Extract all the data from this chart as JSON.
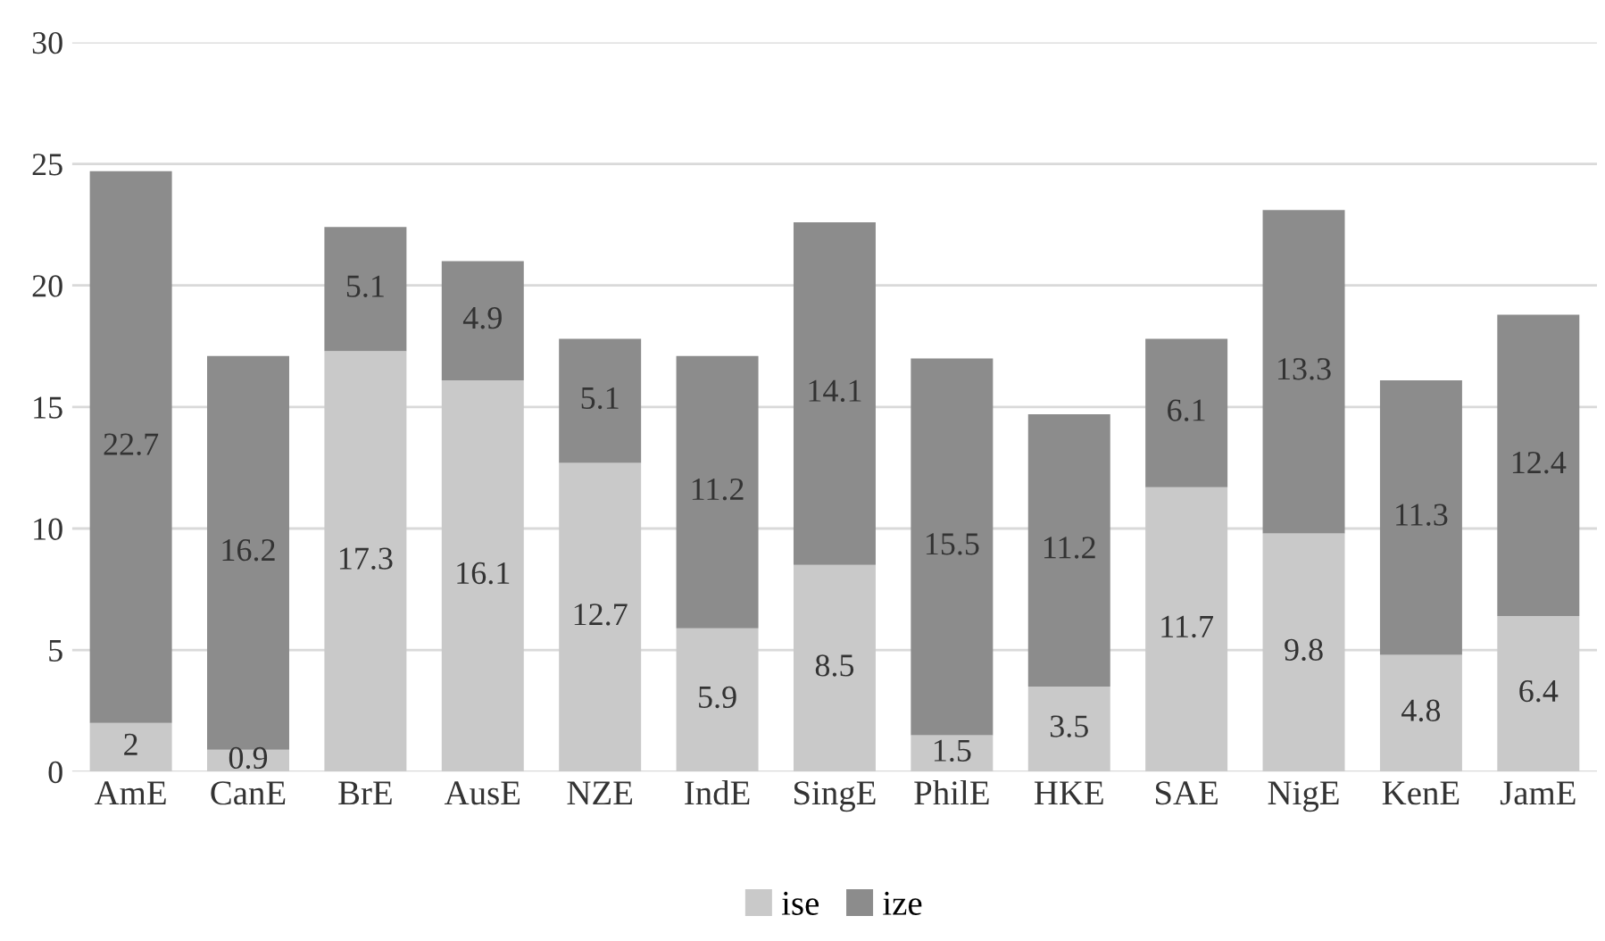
{
  "chart_data": {
    "type": "bar",
    "stacked": true,
    "categories": [
      "AmE",
      "CanE",
      "BrE",
      "AusE",
      "NZE",
      "IndE",
      "SingE",
      "PhilE",
      "HKE",
      "SAE",
      "NigE",
      "KenE",
      "JamE"
    ],
    "series": [
      {
        "name": "ise",
        "color": "#c9c9c9",
        "values": [
          2,
          0.9,
          17.3,
          16.1,
          12.7,
          5.9,
          8.5,
          1.5,
          3.5,
          11.7,
          9.8,
          4.8,
          6.4
        ]
      },
      {
        "name": "ize",
        "color": "#8c8c8c",
        "values": [
          22.7,
          16.2,
          5.1,
          4.9,
          5.1,
          11.2,
          14.1,
          15.5,
          11.2,
          6.1,
          13.3,
          11.3,
          12.4
        ]
      }
    ],
    "ylim": [
      0,
      30
    ],
    "yticks": [
      0,
      5,
      10,
      15,
      20,
      25,
      30
    ],
    "grid": "y",
    "legend": "bottom",
    "data_labels": true
  }
}
